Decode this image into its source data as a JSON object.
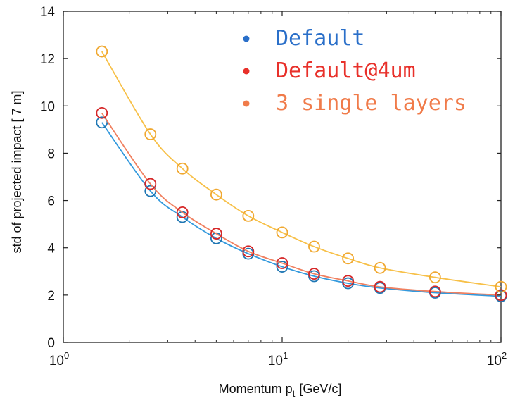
{
  "chart_data": {
    "type": "line",
    "x_scale": "log",
    "xlim": [
      1,
      100
    ],
    "ylim": [
      0,
      14
    ],
    "xticks": [
      {
        "value": 1,
        "base": "10",
        "exp": "0"
      },
      {
        "value": 10,
        "base": "10",
        "exp": "1"
      },
      {
        "value": 100,
        "base": "10",
        "exp": "2"
      }
    ],
    "yticks": [
      "0",
      "2",
      "4",
      "6",
      "8",
      "10",
      "12",
      "14"
    ],
    "xlabel": {
      "main": "Momentum p",
      "sub": "t",
      "unit": "[GeV/c]"
    },
    "ylabel": "std of projected impact [ 7 m]",
    "grid": false,
    "legend_position": "top-right",
    "x": [
      1.5,
      2.5,
      3.5,
      5,
      7,
      10,
      14,
      20,
      28,
      50,
      100
    ],
    "series": [
      {
        "name": "Default",
        "line_color": "#3399dd",
        "marker_color": "#1f77b4",
        "legend_color": "#2a6fc9",
        "values": [
          9.3,
          6.4,
          5.3,
          4.4,
          3.75,
          3.2,
          2.8,
          2.5,
          2.3,
          2.1,
          1.95
        ]
      },
      {
        "name": "Default@4um",
        "line_color": "#f08060",
        "marker_color": "#d62728",
        "legend_color": "#e8302a",
        "values": [
          9.7,
          6.7,
          5.5,
          4.6,
          3.85,
          3.35,
          2.9,
          2.6,
          2.35,
          2.15,
          2.0
        ]
      },
      {
        "name": "3 single layers",
        "line_color": "#f7c048",
        "marker_color": "#f0a830",
        "legend_color": "#f07b4a",
        "values": [
          12.3,
          8.8,
          7.35,
          6.25,
          5.35,
          4.65,
          4.05,
          3.55,
          3.15,
          2.75,
          2.35
        ]
      }
    ]
  }
}
